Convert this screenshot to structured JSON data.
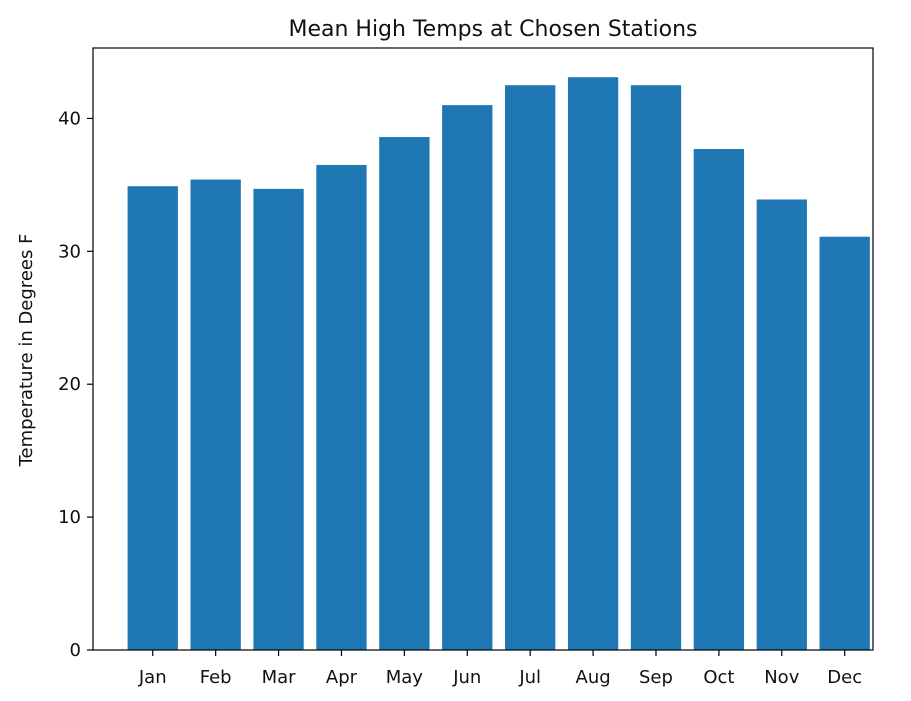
{
  "chart_data": {
    "type": "bar",
    "title": "Mean High Temps at Chosen Stations",
    "xlabel": "",
    "ylabel": "Temperature in Degrees F",
    "categories": [
      "Jan",
      "Feb",
      "Mar",
      "Apr",
      "May",
      "Jun",
      "Jul",
      "Aug",
      "Sep",
      "Oct",
      "Nov",
      "Dec"
    ],
    "values": [
      34.9,
      35.4,
      34.7,
      36.5,
      38.6,
      41.0,
      42.5,
      43.1,
      42.5,
      37.7,
      33.9,
      31.1
    ],
    "ylim": [
      0,
      45.3
    ],
    "yticks": [
      0,
      10,
      20,
      30,
      40
    ],
    "grid": false,
    "bar_color": "#1f77b4"
  }
}
